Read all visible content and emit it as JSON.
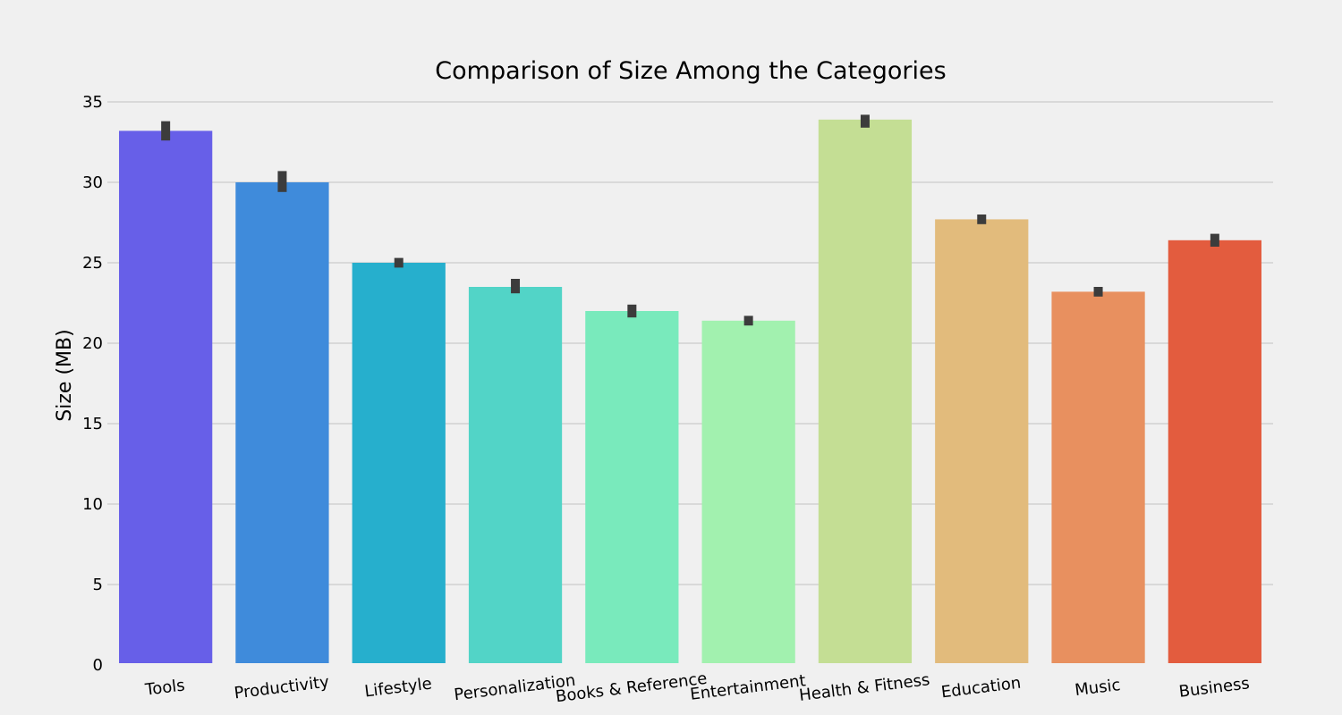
{
  "chart_data": {
    "type": "bar",
    "title": "Comparison of Size Among the Categories",
    "xlabel": "",
    "ylabel": "Size (MB)",
    "ylim": [
      0,
      35
    ],
    "yticks": [
      0,
      5,
      10,
      15,
      20,
      25,
      30,
      35
    ],
    "grid": "horizontal",
    "categories": [
      "Tools",
      "Productivity",
      "Lifestyle",
      "Personalization",
      "Books & Reference",
      "Entertainment",
      "Health & Fitness",
      "Education",
      "Music",
      "Business"
    ],
    "values": [
      33.2,
      30.0,
      25.0,
      23.5,
      22.0,
      21.4,
      33.9,
      27.7,
      23.2,
      26.4
    ],
    "error_low": [
      32.6,
      29.4,
      24.7,
      23.1,
      21.6,
      21.1,
      33.4,
      27.4,
      22.9,
      26.0
    ],
    "error_high": [
      33.8,
      30.7,
      25.3,
      24.0,
      22.4,
      21.7,
      34.2,
      28.0,
      23.5,
      26.8
    ],
    "colors": [
      "#675fe8",
      "#3f8bdb",
      "#26afcd",
      "#52d4c7",
      "#79eabc",
      "#a2f1af",
      "#c4de94",
      "#e2bb7c",
      "#e8905f",
      "#e35c3e"
    ]
  }
}
